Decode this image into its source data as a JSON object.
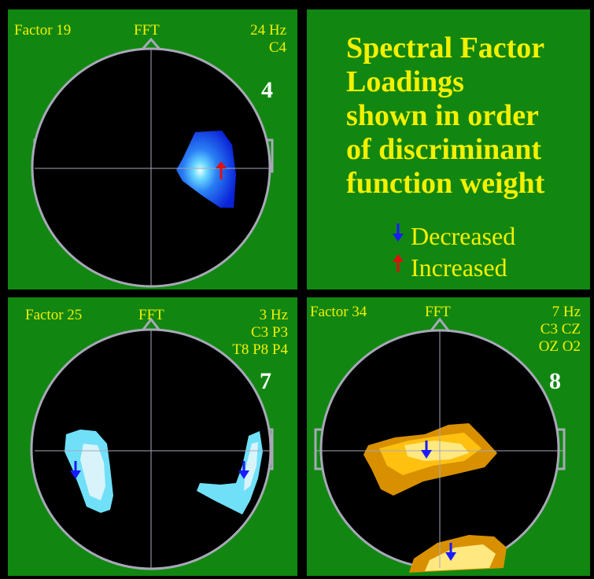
{
  "panels": [
    {
      "id": "factor19",
      "factor_label": "Factor 19",
      "method_label": "FFT",
      "frequency": "24 Hz",
      "electrode_lines": [
        "C4"
      ],
      "rank": "4"
    },
    {
      "id": "factor25",
      "factor_label": "Factor 25",
      "method_label": "FFT",
      "frequency": "3 Hz",
      "electrode_lines": [
        "C3 P3",
        "T8 P8 P4"
      ],
      "rank": "7"
    },
    {
      "id": "factor34",
      "factor_label": "Factor 34",
      "method_label": "FFT",
      "frequency": "7 Hz",
      "electrode_lines": [
        "C3 CZ",
        "OZ O2"
      ],
      "rank": "8"
    }
  ],
  "legend": {
    "title_lines": [
      "Spectral Factor",
      "Loadings",
      "shown in order",
      "of discriminant",
      "function weight"
    ],
    "decreased_label": "Decreased",
    "increased_label": "Increased",
    "decreased_color": "#1a1aff",
    "increased_color": "#e01010"
  },
  "colors": {
    "panel_background": "#118711",
    "head_fill": "#000000",
    "head_outline": "#a8a8b8",
    "label_text": "#f4f000",
    "rank_text": "#ffffff",
    "blue_map": [
      "#0a22d8",
      "#1c6cf0",
      "#3cb0ff",
      "#a8f0ff"
    ],
    "cyan_map": [
      "#70e0f8",
      "#d8f4fa"
    ],
    "orange_map": [
      "#d89000",
      "#ffc010",
      "#ffe880",
      "#fffad0"
    ]
  }
}
